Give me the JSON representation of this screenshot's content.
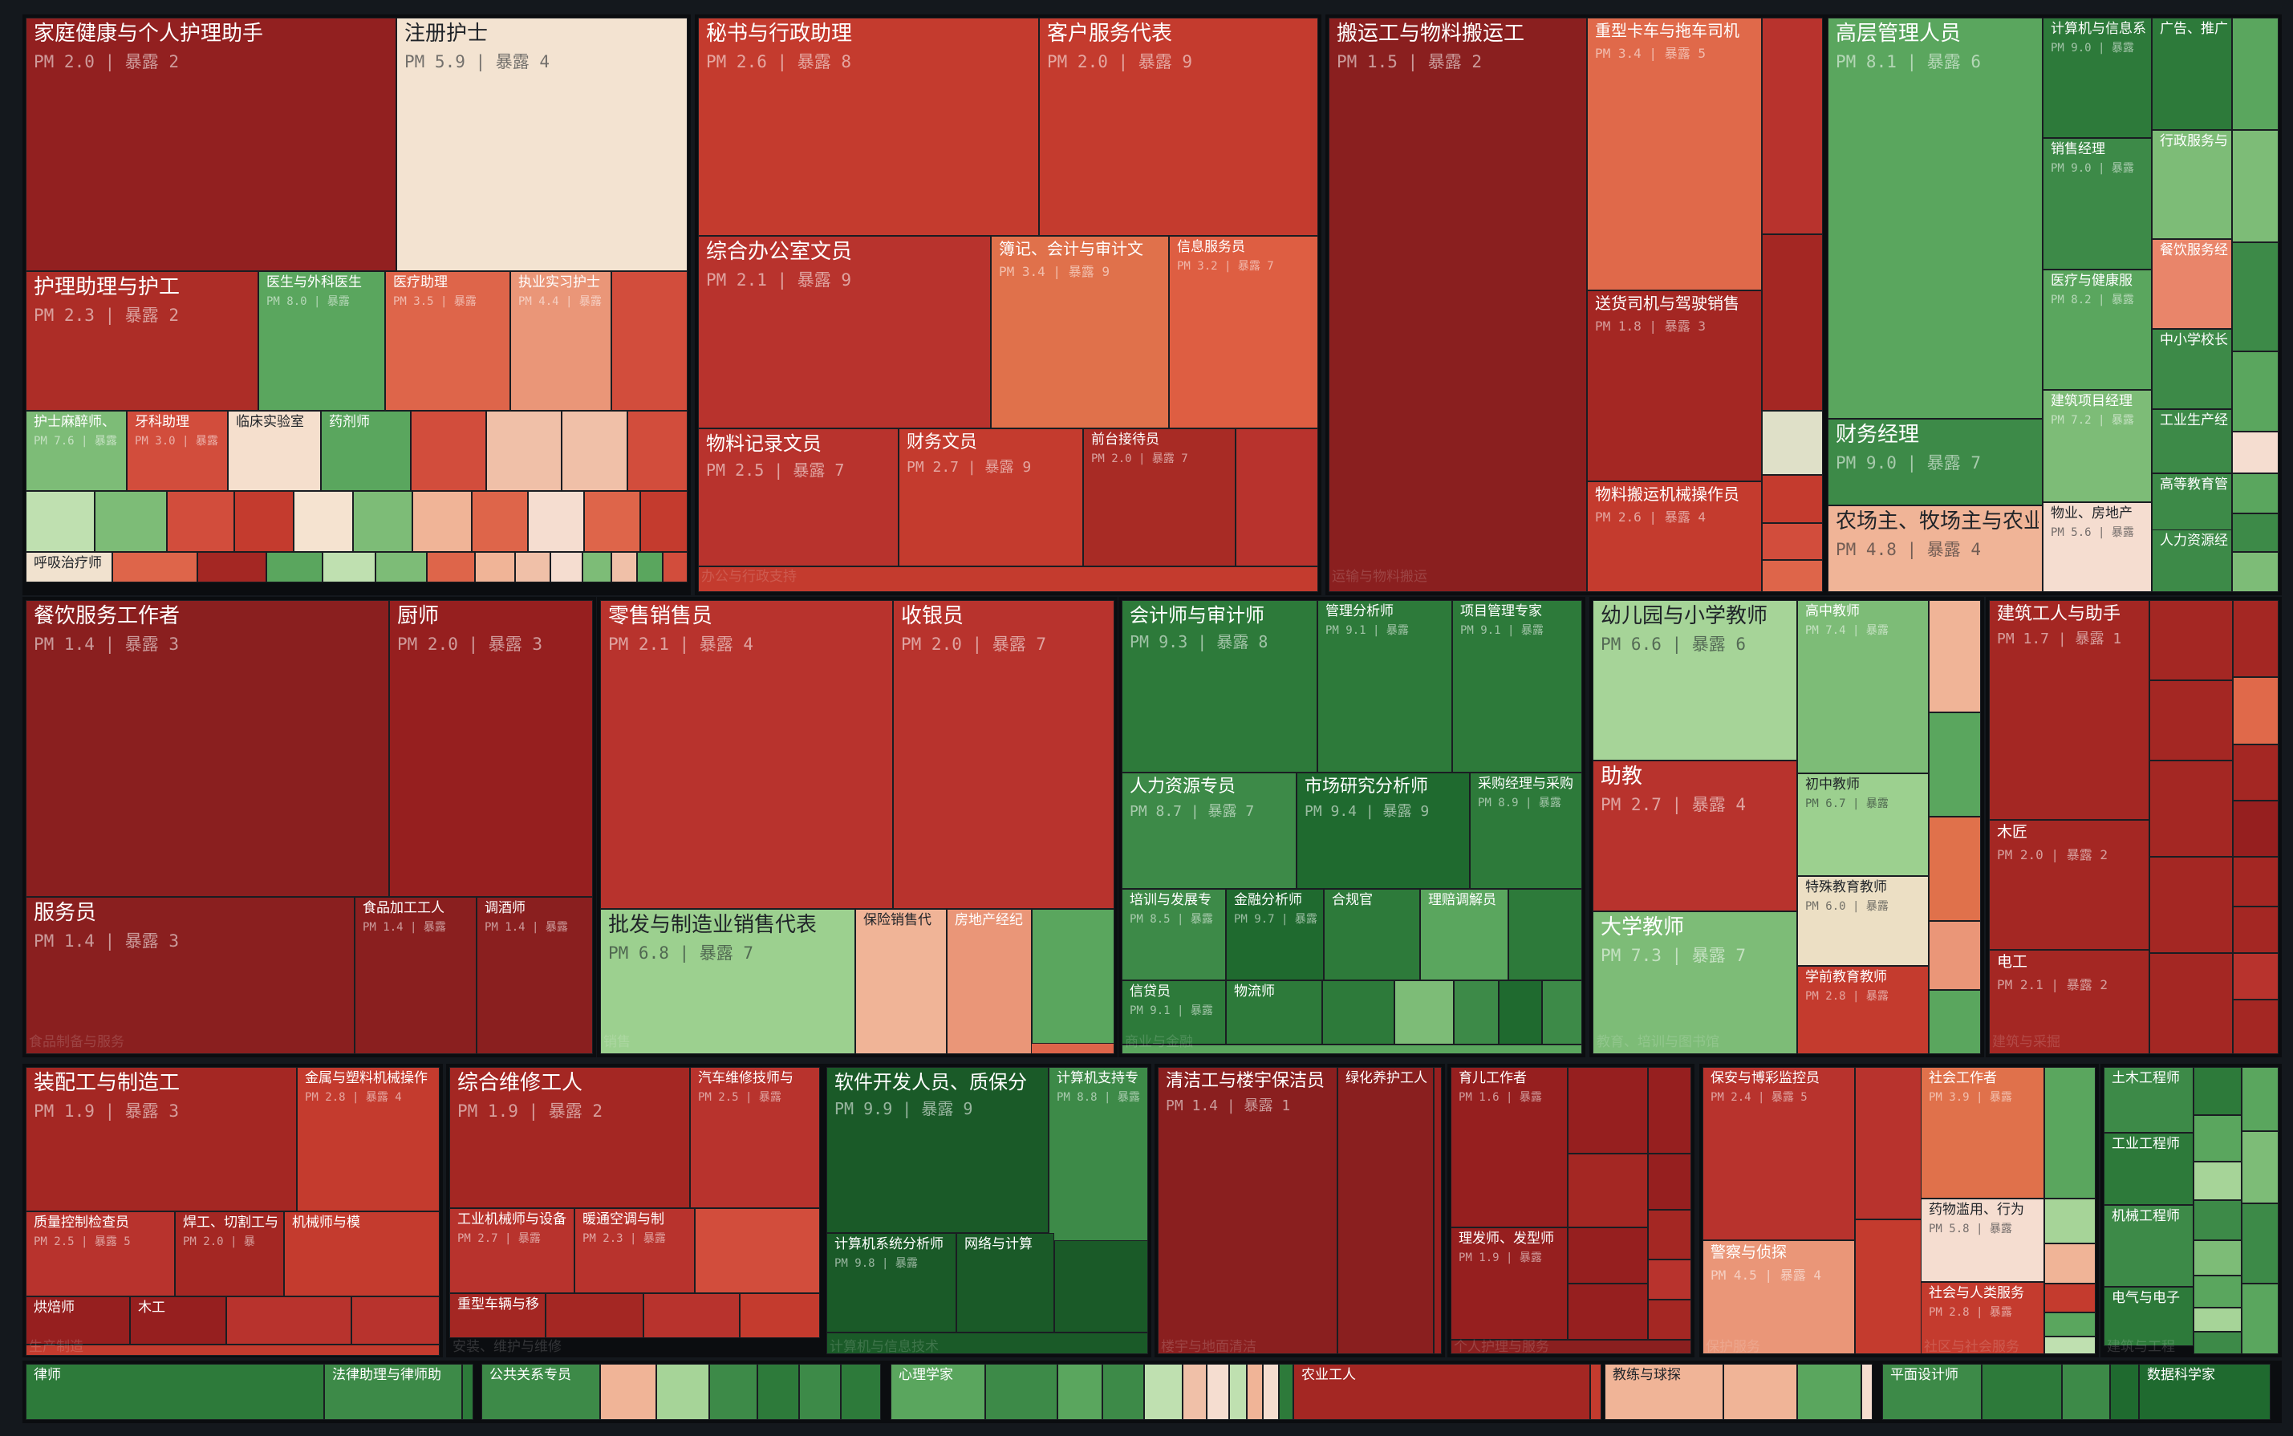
{
  "chart_data": {
    "type": "treemap",
    "value_labels": {
      "pay": "PM",
      "exposure": "暴露"
    },
    "color_scale": {
      "high_exposure": "#b8332d",
      "mid": "#f1e3d2",
      "low_exposure": "#2a7a3a"
    },
    "groups": [
      {
        "label": "",
        "occupations": [
          {
            "name": "家庭健康与个人护理助手",
            "pay": "2.0",
            "exposure": "2",
            "color": "#922020"
          },
          {
            "name": "注册护士",
            "pay": "5.9",
            "exposure": "4",
            "color": "#f3e3d1"
          },
          {
            "name": "护理助理与护工",
            "pay": "2.3",
            "exposure": "2",
            "color": "#ad2d27"
          },
          {
            "name": "医生与外科医生",
            "pay": "8.0",
            "exposure": "暴露",
            "color": "#5aa65e"
          },
          {
            "name": "医疗助理",
            "pay": "3.5",
            "exposure": "暴露",
            "color": "#de654a"
          },
          {
            "name": "执业实习护士",
            "pay": "4.4",
            "exposure": "",
            "color": "#ea9678"
          },
          {
            "name": "护士麻醉师、",
            "pay": "7.6",
            "exposure": "",
            "color": "#7dbc77"
          },
          {
            "name": "牙科助理",
            "pay": "3.0",
            "exposure": "",
            "color": "#d24d3c"
          },
          {
            "name": "临床实验室",
            "pay": "",
            "exposure": "",
            "color": "#f5dfcd"
          },
          {
            "name": "药剂师",
            "pay": "",
            "exposure": "",
            "color": "#5aa65e"
          },
          {
            "name": "呼吸治疗师",
            "pay": "",
            "exposure": "",
            "color": "#f1e2cf"
          }
        ]
      },
      {
        "label": "办公与行政支持",
        "occupations": [
          {
            "name": "秘书与行政助理",
            "pay": "2.6",
            "exposure": "8",
            "color": "#c43b2e"
          },
          {
            "name": "客户服务代表",
            "pay": "2.0",
            "exposure": "9",
            "color": "#c43b2e"
          },
          {
            "name": "综合办公室文员",
            "pay": "2.1",
            "exposure": "9",
            "color": "#b8332d"
          },
          {
            "name": "簿记、会计与审计文",
            "pay": "3.4",
            "exposure": "9",
            "color": "#e0714b"
          },
          {
            "name": "信息服务员",
            "pay": "3.2",
            "exposure": "7",
            "color": "#de5e42"
          },
          {
            "name": "物料记录文员",
            "pay": "2.5",
            "exposure": "7",
            "color": "#b8332d"
          },
          {
            "name": "财务文员",
            "pay": "2.7",
            "exposure": "9",
            "color": "#c43b2e"
          },
          {
            "name": "前台接待员",
            "pay": "2.0",
            "exposure": "7",
            "color": "#a82b25"
          }
        ]
      },
      {
        "label": "运输与物料搬运",
        "occupations": [
          {
            "name": "搬运工与物料搬运工",
            "pay": "1.5",
            "exposure": "2",
            "color": "#8a1f1f"
          },
          {
            "name": "重型卡车与拖车司机",
            "pay": "3.4",
            "exposure": "5",
            "color": "#e0694a"
          },
          {
            "name": "送货司机与驾驶销售",
            "pay": "1.8",
            "exposure": "3",
            "color": "#a42723"
          },
          {
            "name": "物料搬运机械操作员",
            "pay": "2.6",
            "exposure": "4",
            "color": "#c43b2e"
          }
        ]
      },
      {
        "label": "",
        "occupations": [
          {
            "name": "高层管理人员",
            "pay": "8.1",
            "exposure": "6",
            "color": "#5aa65e"
          },
          {
            "name": "财务经理",
            "pay": "9.0",
            "exposure": "7",
            "color": "#3d8a48"
          },
          {
            "name": "农场主、牧场主与农业",
            "pay": "4.8",
            "exposure": "4",
            "color": "#f0b497"
          },
          {
            "name": "计算机与信息系",
            "pay": "9.0",
            "exposure": "",
            "color": "#2d7a3a"
          },
          {
            "name": "销售经理",
            "pay": "9.0",
            "exposure": "",
            "color": "#3d8a48"
          },
          {
            "name": "医疗与健康服",
            "pay": "8.2",
            "exposure": "",
            "color": "#5aa65e"
          },
          {
            "name": "建筑项目经理",
            "pay": "7.2",
            "exposure": "",
            "color": "#7dbc77"
          },
          {
            "name": "物业、房地产",
            "pay": "5.6",
            "exposure": "",
            "color": "#f5ddd0"
          },
          {
            "name": "广告、推广",
            "pay": "",
            "exposure": "",
            "color": "#2d7a3a"
          },
          {
            "name": "行政服务与",
            "pay": "",
            "exposure": "",
            "color": "#7dbc77"
          },
          {
            "name": "餐饮服务经",
            "pay": "",
            "exposure": "",
            "color": "#e9856a"
          },
          {
            "name": "中小学校长",
            "pay": "",
            "exposure": "",
            "color": "#3d8a48"
          },
          {
            "name": "工业生产经",
            "pay": "",
            "exposure": "",
            "color": "#3d8a48"
          },
          {
            "name": "高等教育管",
            "pay": "",
            "exposure": "",
            "color": "#3d8a48"
          },
          {
            "name": "人力资源经",
            "pay": "",
            "exposure": "",
            "color": "#3d8a48"
          }
        ]
      },
      {
        "label": "食品制备与服务",
        "occupations": [
          {
            "name": "餐饮服务工作者",
            "pay": "1.4",
            "exposure": "3",
            "color": "#8a1f1f"
          },
          {
            "name": "厨师",
            "pay": "2.0",
            "exposure": "3",
            "color": "#961f1f"
          },
          {
            "name": "服务员",
            "pay": "1.4",
            "exposure": "3",
            "color": "#8a1f1f"
          },
          {
            "name": "食品加工工人",
            "pay": "1.4",
            "exposure": "暴露",
            "color": "#8a1f1f"
          },
          {
            "name": "调酒师",
            "pay": "1.4",
            "exposure": "",
            "color": "#8a1f1f"
          }
        ]
      },
      {
        "label": "销售",
        "occupations": [
          {
            "name": "零售销售员",
            "pay": "2.1",
            "exposure": "4",
            "color": "#b8332d"
          },
          {
            "name": "收银员",
            "pay": "2.0",
            "exposure": "7",
            "color": "#b8332d"
          },
          {
            "name": "批发与制造业销售代表",
            "pay": "6.8",
            "exposure": "7",
            "color": "#9cd08f"
          },
          {
            "name": "保险销售代",
            "pay": "",
            "exposure": "",
            "color": "#f0b497"
          },
          {
            "name": "房地产经纪",
            "pay": "",
            "exposure": "",
            "color": "#ea9678"
          }
        ]
      },
      {
        "label": "商业与金融",
        "occupations": [
          {
            "name": "会计师与审计师",
            "pay": "9.3",
            "exposure": "8",
            "color": "#2d7a3a"
          },
          {
            "name": "管理分析师",
            "pay": "9.1",
            "exposure": "暴露",
            "color": "#2d7a3a"
          },
          {
            "name": "项目管理专家",
            "pay": "9.1",
            "exposure": "暴露",
            "color": "#2d7a3a"
          },
          {
            "name": "人力资源专员",
            "pay": "8.7",
            "exposure": "7",
            "color": "#3d8a48"
          },
          {
            "name": "市场研究分析师",
            "pay": "9.4",
            "exposure": "9",
            "color": "#1f6a2f"
          },
          {
            "name": "采购经理与采购",
            "pay": "8.9",
            "exposure": "",
            "color": "#2d7a3a"
          },
          {
            "name": "培训与发展专",
            "pay": "8.5",
            "exposure": "",
            "color": "#3d8a48"
          },
          {
            "name": "金融分析师",
            "pay": "9.7",
            "exposure": "",
            "color": "#1f6a2f"
          },
          {
            "name": "合规官",
            "pay": "",
            "exposure": "",
            "color": "#2d7a3a"
          },
          {
            "name": "理赔调解员",
            "pay": "",
            "exposure": "",
            "color": "#5aa65e"
          },
          {
            "name": "信贷员",
            "pay": "9.1",
            "exposure": "",
            "color": "#2d7a3a"
          },
          {
            "name": "物流师",
            "pay": "",
            "exposure": "",
            "color": "#2d7a3a"
          }
        ]
      },
      {
        "label": "教育、培训与图书馆",
        "occupations": [
          {
            "name": "幼儿园与小学教师",
            "pay": "6.6",
            "exposure": "6",
            "color": "#a6d498"
          },
          {
            "name": "高中教师",
            "pay": "7.4",
            "exposure": "暴露",
            "color": "#7dbc77"
          },
          {
            "name": "助教",
            "pay": "2.7",
            "exposure": "4",
            "color": "#b8332d"
          },
          {
            "name": "初中教师",
            "pay": "6.7",
            "exposure": "暴露",
            "color": "#9cd08f"
          },
          {
            "name": "特殊教育教师",
            "pay": "6.0",
            "exposure": "暴露",
            "color": "#ecdfc4"
          },
          {
            "name": "大学教师",
            "pay": "7.3",
            "exposure": "7",
            "color": "#7dbc77"
          },
          {
            "name": "学前教育教师",
            "pay": "2.8",
            "exposure": "暴露",
            "color": "#c43b2e"
          }
        ]
      },
      {
        "label": "建筑与采掘",
        "occupations": [
          {
            "name": "建筑工人与助手",
            "pay": "1.7",
            "exposure": "1",
            "color": "#a42723"
          },
          {
            "name": "木匠",
            "pay": "2.0",
            "exposure": "2",
            "color": "#a42723"
          },
          {
            "name": "电工",
            "pay": "2.1",
            "exposure": "2",
            "color": "#a42723"
          }
        ]
      },
      {
        "label": "生产制造",
        "occupations": [
          {
            "name": "装配工与制造工",
            "pay": "1.9",
            "exposure": "3",
            "color": "#a42723"
          },
          {
            "name": "金属与塑料机械操作",
            "pay": "2.8",
            "exposure": "4",
            "color": "#c43b2e"
          },
          {
            "name": "质量控制检查员",
            "pay": "2.5",
            "exposure": "5",
            "color": "#b8332d"
          },
          {
            "name": "焊工、切割工与",
            "pay": "2.0",
            "exposure": "暴",
            "color": "#a42723"
          },
          {
            "name": "机械师与模",
            "pay": "",
            "exposure": "",
            "color": "#c43b2e"
          },
          {
            "name": "烘焙师",
            "pay": "",
            "exposure": "",
            "color": "#961f1f"
          },
          {
            "name": "木工",
            "pay": "",
            "exposure": "",
            "color": "#961f1f"
          }
        ]
      },
      {
        "label": "安装、维护与维修",
        "occupations": [
          {
            "name": "综合维修工人",
            "pay": "1.9",
            "exposure": "2",
            "color": "#a42723"
          },
          {
            "name": "汽车维修技师与",
            "pay": "2.5",
            "exposure": "暴露",
            "color": "#b8332d"
          },
          {
            "name": "工业机械师与设备",
            "pay": "2.7",
            "exposure": "暴露",
            "color": "#b8332d"
          },
          {
            "name": "暖通空调与制",
            "pay": "2.3",
            "exposure": "暴露",
            "color": "#b8332d"
          },
          {
            "name": "重型车辆与移",
            "pay": "",
            "exposure": "",
            "color": "#a42723"
          }
        ]
      },
      {
        "label": "计算机与信息技术",
        "occupations": [
          {
            "name": "软件开发人员、质保分",
            "pay": "9.9",
            "exposure": "9",
            "color": "#1a5a28"
          },
          {
            "name": "计算机支持专",
            "pay": "8.8",
            "exposure": "",
            "color": "#3d8a48"
          },
          {
            "name": "计算机系统分析师",
            "pay": "9.8",
            "exposure": "暴露",
            "color": "#1a5a28"
          },
          {
            "name": "网络与计算",
            "pay": "",
            "exposure": "",
            "color": "#1a5a28"
          }
        ]
      },
      {
        "label": "楼宇与地面清洁",
        "occupations": [
          {
            "name": "清洁工与楼宇保洁员",
            "pay": "1.4",
            "exposure": "1",
            "color": "#8a1f1f"
          },
          {
            "name": "绿化养护工人",
            "pay": "",
            "exposure": "",
            "color": "#8a1f1f"
          }
        ]
      },
      {
        "label": "个人护理与服务",
        "occupations": [
          {
            "name": "育儿工作者",
            "pay": "1.6",
            "exposure": "暴露",
            "color": "#961f1f"
          },
          {
            "name": "理发师、发型师",
            "pay": "1.9",
            "exposure": "暴露",
            "color": "#961f1f"
          }
        ]
      },
      {
        "label": "保护服务",
        "occupations": [
          {
            "name": "保安与博彩监控员",
            "pay": "2.4",
            "exposure": "5",
            "color": "#b8332d"
          },
          {
            "name": "警察与侦探",
            "pay": "4.5",
            "exposure": "4",
            "color": "#ea9678"
          }
        ]
      },
      {
        "label": "社区与社会服务",
        "occupations": [
          {
            "name": "社会工作者",
            "pay": "3.9",
            "exposure": "暴露",
            "color": "#e0714b"
          },
          {
            "name": "药物滥用、行为",
            "pay": "5.8",
            "exposure": "暴露",
            "color": "#f5ddd0"
          },
          {
            "name": "社会与人类服务",
            "pay": "2.8",
            "exposure": "暴露",
            "color": "#c43b2e"
          }
        ]
      },
      {
        "label": "建筑与工程",
        "occupations": [
          {
            "name": "土木工程师",
            "pay": "",
            "exposure": "",
            "color": "#3d8a48"
          },
          {
            "name": "工业工程师",
            "pay": "",
            "exposure": "",
            "color": "#2d7a3a"
          },
          {
            "name": "机械工程师",
            "pay": "",
            "exposure": "",
            "color": "#3d8a48"
          },
          {
            "name": "电气与电子",
            "pay": "",
            "exposure": "",
            "color": "#2d7a3a"
          }
        ]
      },
      {
        "label": "",
        "occupations": [
          {
            "name": "律师",
            "pay": "",
            "exposure": "",
            "color": "#2d7a3a"
          },
          {
            "name": "法律助理与律师助",
            "pay": "",
            "exposure": "",
            "color": "#3d8a48"
          },
          {
            "name": "公共关系专员",
            "pay": "",
            "exposure": "",
            "color": "#3d8a48"
          },
          {
            "name": "心理学家",
            "pay": "",
            "exposure": "",
            "color": "#5aa65e"
          },
          {
            "name": "农业工人",
            "pay": "",
            "exposure": "",
            "color": "#a42723"
          },
          {
            "name": "教练与球探",
            "pay": "",
            "exposure": "",
            "color": "#f0b497"
          },
          {
            "name": "平面设计师",
            "pay": "",
            "exposure": "",
            "color": "#3d8a48"
          },
          {
            "name": "数据科学家",
            "pay": "",
            "exposure": "",
            "color": "#1f6a2f"
          }
        ]
      }
    ]
  }
}
